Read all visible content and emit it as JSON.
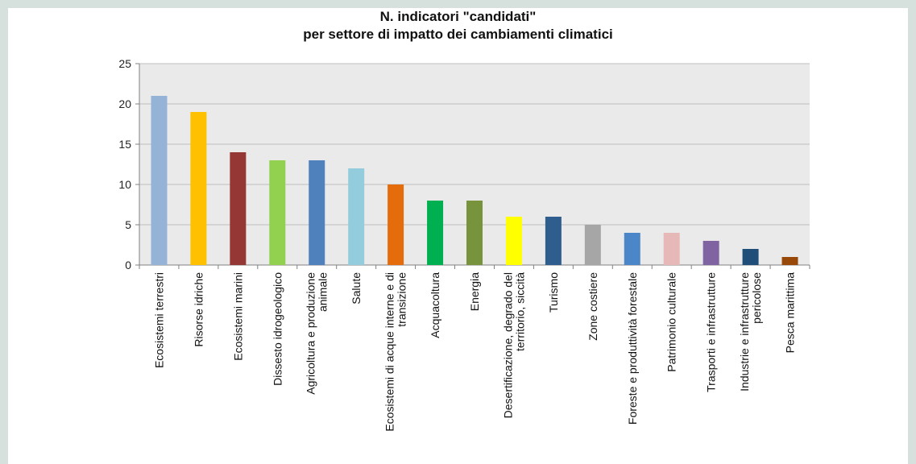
{
  "chart_data": {
    "type": "bar",
    "title_line1": "N. indicatori \"candidati\"",
    "title_line2": "per settore di impatto dei cambiamenti climatici",
    "xlabel": "",
    "ylabel": "",
    "ylim": [
      0,
      25
    ],
    "yticks": [
      "0",
      "5",
      "10",
      "15",
      "20",
      "25"
    ],
    "grid": true,
    "legend": "none",
    "categories": [
      [
        "Ecosistemi terrestri"
      ],
      [
        "Risorse idriche"
      ],
      [
        "Ecosistemi marini"
      ],
      [
        "Dissesto idrogeologico"
      ],
      [
        "Agricoltura e produzione",
        "animale"
      ],
      [
        "Salute"
      ],
      [
        "Ecosistemi di acque interne e di",
        "transizione"
      ],
      [
        "Acquacoltura"
      ],
      [
        "Energia"
      ],
      [
        "Desertificazione, degrado del",
        "territorio, siccità"
      ],
      [
        "Turismo"
      ],
      [
        "Zone costiere"
      ],
      [
        "Foreste e produttività forestale"
      ],
      [
        "Patrimonio culturale"
      ],
      [
        "Trasporti e infrastrutture"
      ],
      [
        "Industrie e infrastrutture",
        "pericolose"
      ],
      [
        "Pesca marittima"
      ]
    ],
    "values": [
      21,
      19,
      14,
      13,
      13,
      12,
      10,
      8,
      8,
      6,
      6,
      5,
      4,
      4,
      3,
      2,
      1
    ],
    "colors": [
      "#95b3d7",
      "#ffc000",
      "#953735",
      "#92d050",
      "#4f81bd",
      "#93cddd",
      "#e46c0a",
      "#00b050",
      "#77933c",
      "#ffff00",
      "#2f5d8e",
      "#a6a6a6",
      "#4a86c8",
      "#e6b9b8",
      "#8064a2",
      "#1f4e79",
      "#984807"
    ],
    "plot_background": "#eaeaea",
    "grid_color": "#bfbfbf"
  }
}
